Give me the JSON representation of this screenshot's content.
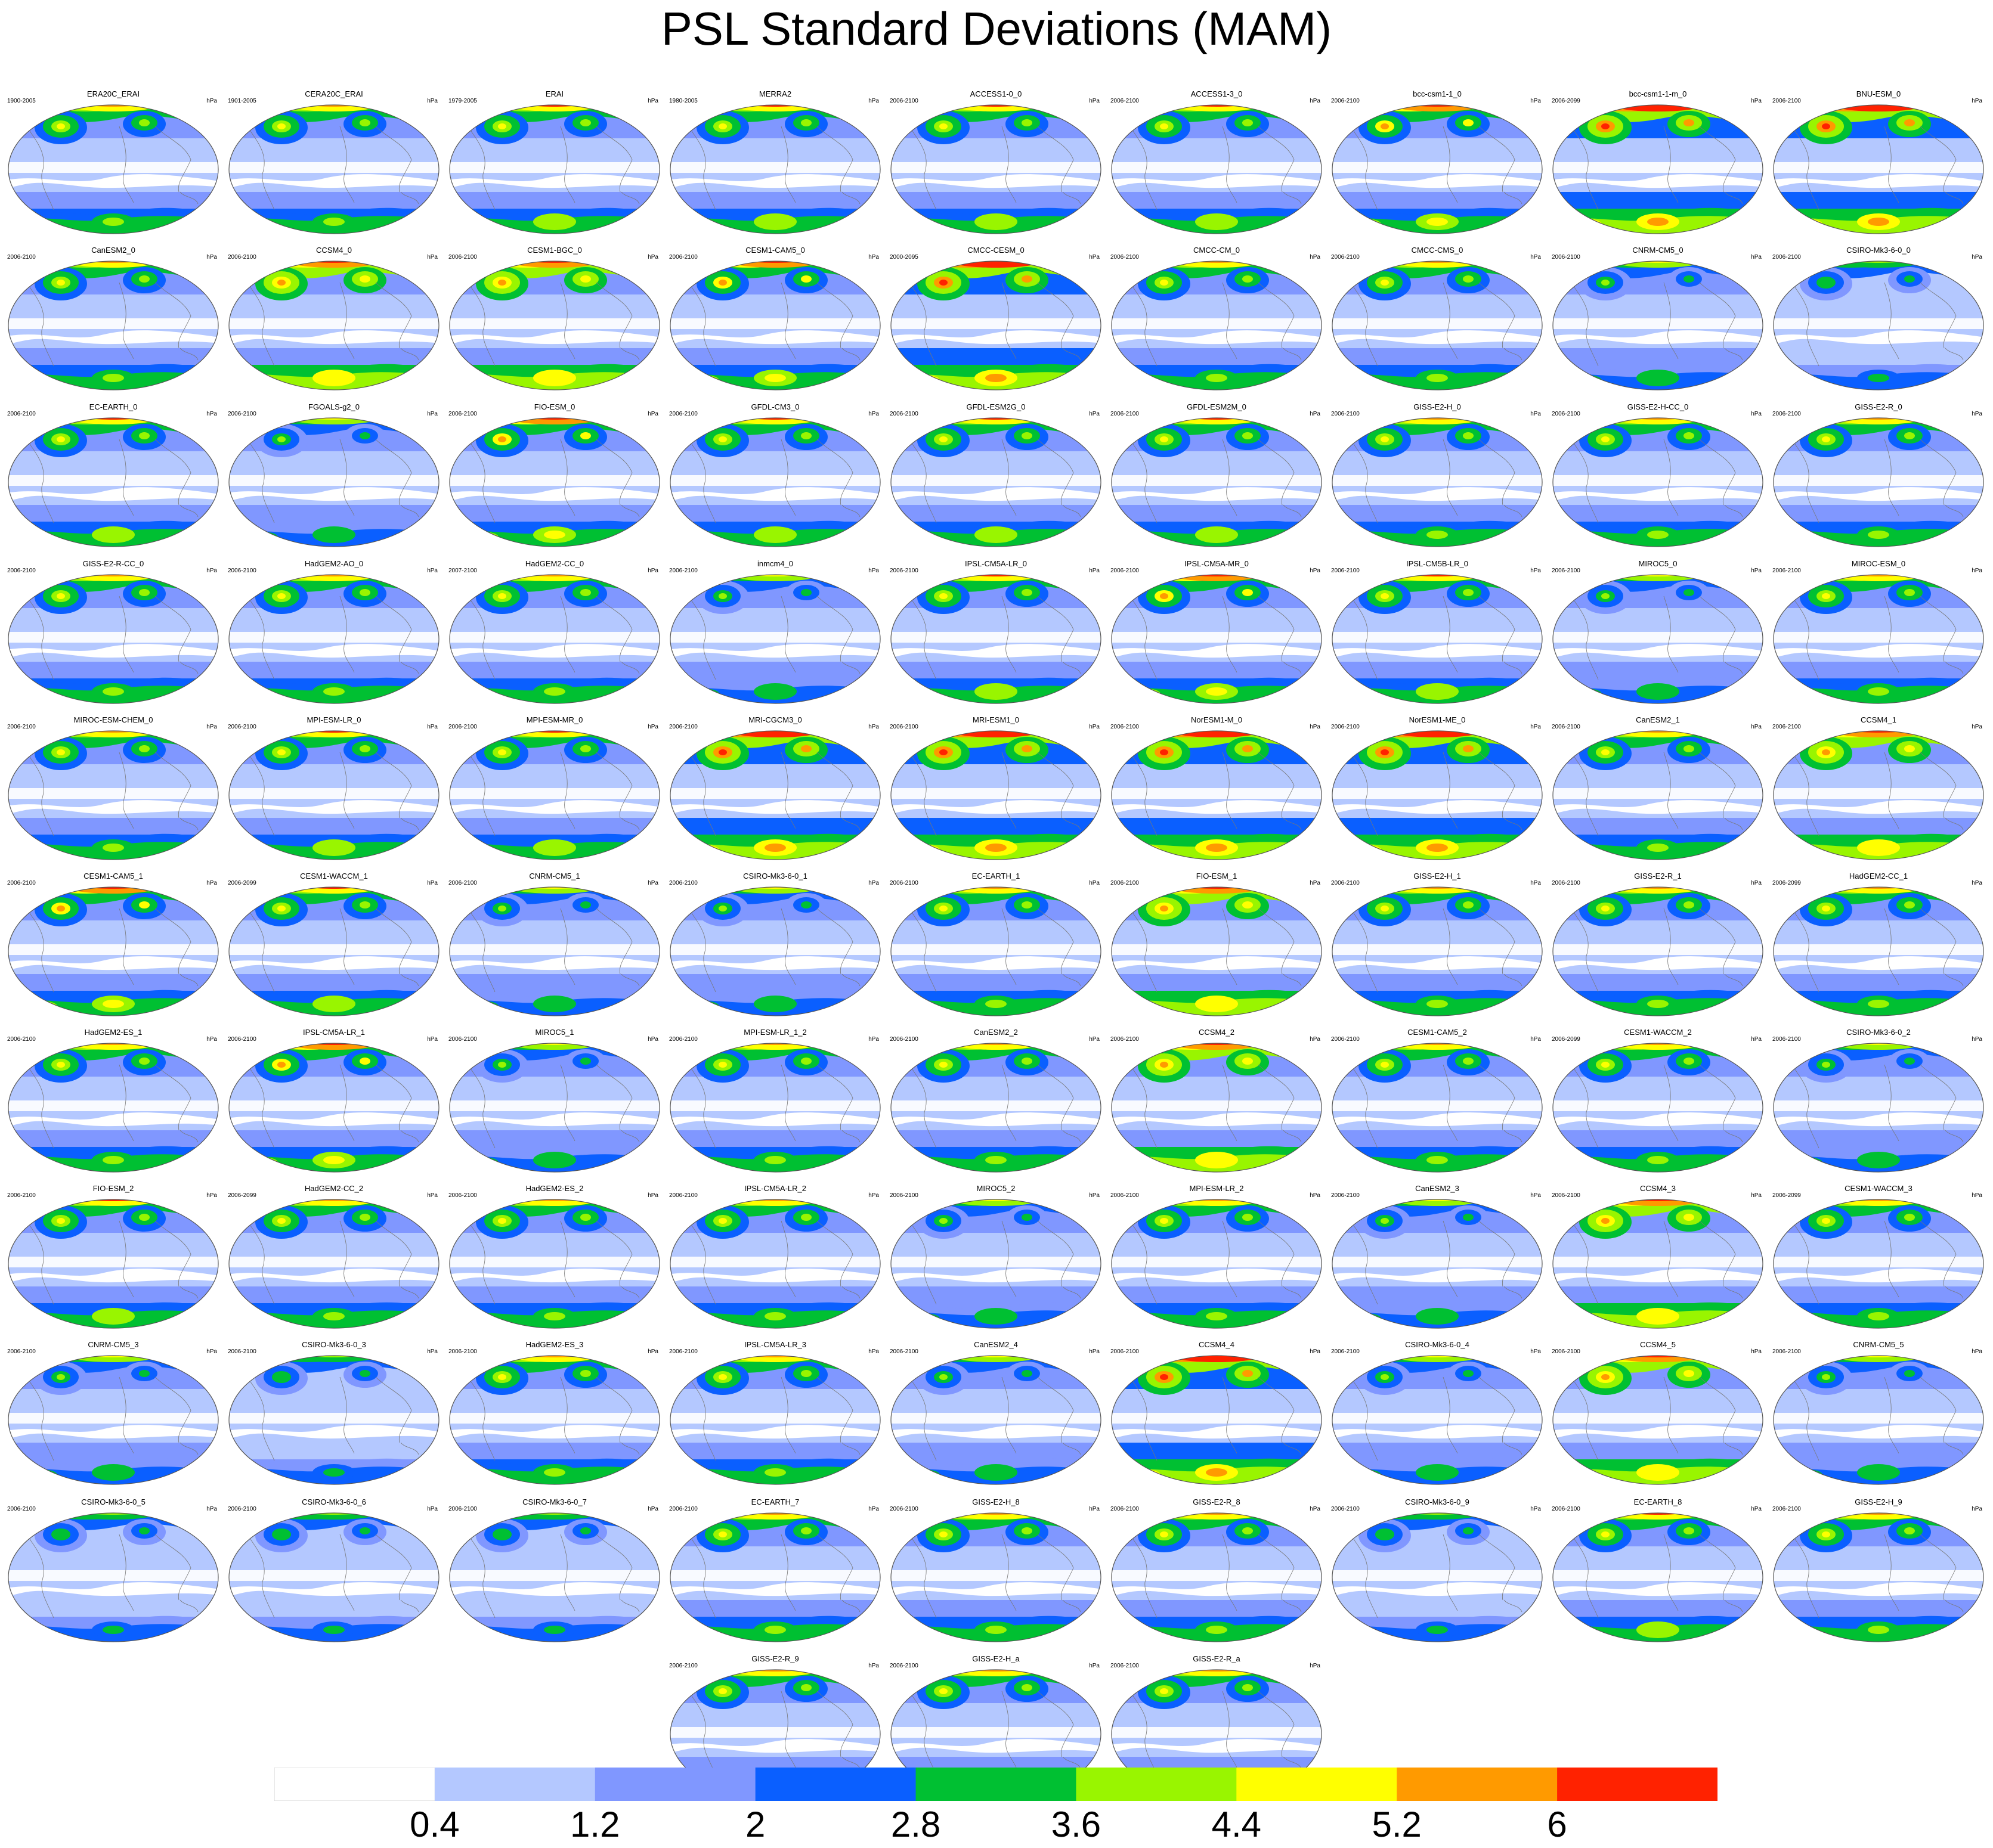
{
  "figure": {
    "title": "PSL Standard Deviations (MAM)",
    "units_label": "hPa",
    "panels": [
      {
        "name": "ERA20C_ERAI",
        "years": "1900-2005",
        "intensity": 0.9
      },
      {
        "name": "CERA20C_ERAI",
        "years": "1901-2005",
        "intensity": 0.9
      },
      {
        "name": "ERAI",
        "years": "1979-2005",
        "intensity": 1.0
      },
      {
        "name": "MERRA2",
        "years": "1980-2005",
        "intensity": 1.0
      },
      {
        "name": "ACCESS1-0_0",
        "years": "2006-2100",
        "intensity": 1.0
      },
      {
        "name": "ACCESS1-3_0",
        "years": "2006-2100",
        "intensity": 1.0
      },
      {
        "name": "bcc-csm1-1_0",
        "years": "2006-2100",
        "intensity": 1.1
      },
      {
        "name": "bcc-csm1-1-m_0",
        "years": "2006-2099",
        "intensity": 1.3
      },
      {
        "name": "BNU-ESM_0",
        "years": "2006-2100",
        "intensity": 1.3
      },
      {
        "name": "CanESM2_0",
        "years": "2006-2100",
        "intensity": 0.9
      },
      {
        "name": "CCSM4_0",
        "years": "2006-2100",
        "intensity": 1.2
      },
      {
        "name": "CESM1-BGC_0",
        "years": "2006-2100",
        "intensity": 1.2
      },
      {
        "name": "CESM1-CAM5_0",
        "years": "2006-2100",
        "intensity": 1.1
      },
      {
        "name": "CMCC-CESM_0",
        "years": "2000-2095",
        "intensity": 1.3
      },
      {
        "name": "CMCC-CM_0",
        "years": "2006-2100",
        "intensity": 0.9
      },
      {
        "name": "CMCC-CMS_0",
        "years": "2006-2100",
        "intensity": 0.9
      },
      {
        "name": "CNRM-CM5_0",
        "years": "2006-2100",
        "intensity": 0.8
      },
      {
        "name": "CSIRO-Mk3-6-0_0",
        "years": "2006-2100",
        "intensity": 0.7
      },
      {
        "name": "EC-EARTH_0",
        "years": "2006-2100",
        "intensity": 1.0
      },
      {
        "name": "FGOALS-g2_0",
        "years": "2006-2100",
        "intensity": 0.8
      },
      {
        "name": "FIO-ESM_0",
        "years": "2006-2100",
        "intensity": 1.1
      },
      {
        "name": "GFDL-CM3_0",
        "years": "2006-2100",
        "intensity": 1.0
      },
      {
        "name": "GFDL-ESM2G_0",
        "years": "2006-2100",
        "intensity": 1.0
      },
      {
        "name": "GFDL-ESM2M_0",
        "years": "2006-2100",
        "intensity": 1.0
      },
      {
        "name": "GISS-E2-H_0",
        "years": "2006-2100",
        "intensity": 0.9
      },
      {
        "name": "GISS-E2-H-CC_0",
        "years": "2006-2100",
        "intensity": 0.9
      },
      {
        "name": "GISS-E2-R_0",
        "years": "2006-2100",
        "intensity": 0.9
      },
      {
        "name": "GISS-E2-R-CC_0",
        "years": "2006-2100",
        "intensity": 0.9
      },
      {
        "name": "HadGEM2-AO_0",
        "years": "2006-2100",
        "intensity": 0.9
      },
      {
        "name": "HadGEM2-CC_0",
        "years": "2007-2100",
        "intensity": 0.9
      },
      {
        "name": "inmcm4_0",
        "years": "2006-2100",
        "intensity": 0.8
      },
      {
        "name": "IPSL-CM5A-LR_0",
        "years": "2006-2100",
        "intensity": 1.0
      },
      {
        "name": "IPSL-CM5A-MR_0",
        "years": "2006-2100",
        "intensity": 1.1
      },
      {
        "name": "IPSL-CM5B-LR_0",
        "years": "2006-2100",
        "intensity": 1.0
      },
      {
        "name": "MIROC5_0",
        "years": "2006-2100",
        "intensity": 0.8
      },
      {
        "name": "MIROC-ESM_0",
        "years": "2006-2100",
        "intensity": 0.9
      },
      {
        "name": "MIROC-ESM-CHEM_0",
        "years": "2006-2100",
        "intensity": 0.9
      },
      {
        "name": "MPI-ESM-LR_0",
        "years": "2006-2100",
        "intensity": 1.0
      },
      {
        "name": "MPI-ESM-MR_0",
        "years": "2006-2100",
        "intensity": 1.0
      },
      {
        "name": "MRI-CGCM3_0",
        "years": "2006-2100",
        "intensity": 1.3
      },
      {
        "name": "MRI-ESM1_0",
        "years": "2006-2100",
        "intensity": 1.3
      },
      {
        "name": "NorESM1-M_0",
        "years": "2006-2100",
        "intensity": 1.3
      },
      {
        "name": "NorESM1-ME_0",
        "years": "2006-2100",
        "intensity": 1.3
      },
      {
        "name": "CanESM2_1",
        "years": "2006-2100",
        "intensity": 0.9
      },
      {
        "name": "CCSM4_1",
        "years": "2006-2100",
        "intensity": 1.2
      },
      {
        "name": "CESM1-CAM5_1",
        "years": "2006-2100",
        "intensity": 1.1
      },
      {
        "name": "CESM1-WACCM_1",
        "years": "2006-2099",
        "intensity": 1.0
      },
      {
        "name": "CNRM-CM5_1",
        "years": "2006-2100",
        "intensity": 0.8
      },
      {
        "name": "CSIRO-Mk3-6-0_1",
        "years": "2006-2100",
        "intensity": 0.8
      },
      {
        "name": "EC-EARTH_1",
        "years": "2006-2100",
        "intensity": 0.9
      },
      {
        "name": "FIO-ESM_1",
        "years": "2006-2100",
        "intensity": 1.2
      },
      {
        "name": "GISS-E2-H_1",
        "years": "2006-2100",
        "intensity": 0.9
      },
      {
        "name": "GISS-E2-R_1",
        "years": "2006-2100",
        "intensity": 0.9
      },
      {
        "name": "HadGEM2-CC_1",
        "years": "2006-2099",
        "intensity": 0.9
      },
      {
        "name": "HadGEM2-ES_1",
        "years": "2006-2100",
        "intensity": 0.9
      },
      {
        "name": "IPSL-CM5A-LR_1",
        "years": "2006-2100",
        "intensity": 1.1
      },
      {
        "name": "MIROC5_1",
        "years": "2006-2100",
        "intensity": 0.8
      },
      {
        "name": "MPI-ESM-LR_1_2",
        "years": "2006-2100",
        "intensity": 0.9
      },
      {
        "name": "CanESM2_2",
        "years": "2006-2100",
        "intensity": 0.9
      },
      {
        "name": "CCSM4_2",
        "years": "2006-2100",
        "intensity": 1.2
      },
      {
        "name": "CESM1-CAM5_2",
        "years": "2006-2100",
        "intensity": 0.9
      },
      {
        "name": "CESM1-WACCM_2",
        "years": "2006-2099",
        "intensity": 0.9
      },
      {
        "name": "CSIRO-Mk3-6-0_2",
        "years": "2006-2100",
        "intensity": 0.8
      },
      {
        "name": "FIO-ESM_2",
        "years": "2006-2100",
        "intensity": 1.0
      },
      {
        "name": "HadGEM2-CC_2",
        "years": "2006-2099",
        "intensity": 0.9
      },
      {
        "name": "HadGEM2-ES_2",
        "years": "2006-2100",
        "intensity": 0.9
      },
      {
        "name": "IPSL-CM5A-LR_2",
        "years": "2006-2100",
        "intensity": 0.9
      },
      {
        "name": "MIROC5_2",
        "years": "2006-2100",
        "intensity": 0.8
      },
      {
        "name": "MPI-ESM-LR_2",
        "years": "2006-2100",
        "intensity": 0.9
      },
      {
        "name": "CanESM2_3",
        "years": "2006-2100",
        "intensity": 0.8
      },
      {
        "name": "CCSM4_3",
        "years": "2006-2100",
        "intensity": 1.2
      },
      {
        "name": "CESM1-WACCM_3",
        "years": "2006-2099",
        "intensity": 0.9
      },
      {
        "name": "CNRM-CM5_3",
        "years": "2006-2100",
        "intensity": 0.8
      },
      {
        "name": "CSIRO-Mk3-6-0_3",
        "years": "2006-2100",
        "intensity": 0.7
      },
      {
        "name": "HadGEM2-ES_3",
        "years": "2006-2100",
        "intensity": 0.9
      },
      {
        "name": "IPSL-CM5A-LR_3",
        "years": "2006-2100",
        "intensity": 0.9
      },
      {
        "name": "CanESM2_4",
        "years": "2006-2100",
        "intensity": 0.8
      },
      {
        "name": "CCSM4_4",
        "years": "2006-2100",
        "intensity": 1.3
      },
      {
        "name": "CSIRO-Mk3-6-0_4",
        "years": "2006-2100",
        "intensity": 0.8
      },
      {
        "name": "CCSM4_5",
        "years": "2006-2100",
        "intensity": 1.2
      },
      {
        "name": "CNRM-CM5_5",
        "years": "2006-2100",
        "intensity": 0.8
      },
      {
        "name": "CSIRO-Mk3-6-0_5",
        "years": "2006-2100",
        "intensity": 0.7
      },
      {
        "name": "CSIRO-Mk3-6-0_6",
        "years": "2006-2100",
        "intensity": 0.7
      },
      {
        "name": "CSIRO-Mk3-6-0_7",
        "years": "2006-2100",
        "intensity": 0.7
      },
      {
        "name": "EC-EARTH_7",
        "years": "2006-2100",
        "intensity": 0.9
      },
      {
        "name": "GISS-E2-H_8",
        "years": "2006-2100",
        "intensity": 0.9
      },
      {
        "name": "GISS-E2-R_8",
        "years": "2006-2100",
        "intensity": 0.9
      },
      {
        "name": "CSIRO-Mk3-6-0_9",
        "years": "2006-2100",
        "intensity": 0.7
      },
      {
        "name": "EC-EARTH_8",
        "years": "2006-2100",
        "intensity": 1.0
      },
      {
        "name": "GISS-E2-H_9",
        "years": "2006-2100",
        "intensity": 0.9
      },
      {
        "name": "GISS-E2-R_9",
        "years": "2006-2100",
        "intensity": 0.9
      },
      {
        "name": "GISS-E2-H_a",
        "years": "2006-2100",
        "intensity": 0.9
      },
      {
        "name": "GISS-E2-R_a",
        "years": "2006-2100",
        "intensity": 0.9
      }
    ],
    "colorbar": {
      "levels": [
        "0.4",
        "1.2",
        "2",
        "2.8",
        "3.6",
        "4.4",
        "5.2",
        "6"
      ],
      "colors": [
        "#ffffff",
        "#b4c8ff",
        "#8097ff",
        "#0a5fff",
        "#00c032",
        "#99f500",
        "#ffff00",
        "#ff9a00",
        "#ff2200"
      ]
    }
  }
}
